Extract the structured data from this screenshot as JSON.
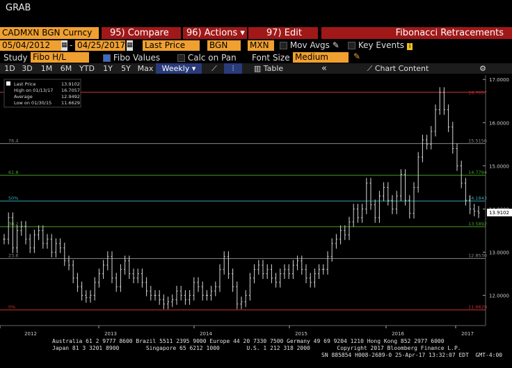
{
  "app_title": "GRAB",
  "toolbar": {
    "security": "CADMXN BGN Curncy",
    "compare": "95) Compare",
    "actions": "96) Actions",
    "edit": "97) Edit",
    "title": "Fibonacci Retracements"
  },
  "settings": {
    "start_date": "05/04/2012",
    "end_date": "04/25/2017",
    "price_type": "Last Price",
    "source": "BGN",
    "currency": "MXN",
    "mov_avgs": "Mov Avgs",
    "key_events": "Key Events",
    "key_events_badge": "i"
  },
  "study_row": {
    "study_label": "Study",
    "study_value": "Fibo H/L",
    "fibo_values": "Fibo Values",
    "calc_on_pan": "Calc on Pan",
    "font_size_label": "Font Size",
    "font_size_value": "Medium"
  },
  "periods": [
    "1D",
    "3D",
    "1M",
    "6M",
    "YTD",
    "1Y",
    "5Y",
    "Max"
  ],
  "frequency": "Weekly",
  "table_label": "Table",
  "chart_content_label": "Chart Content",
  "legend": {
    "last_price_label": "Last Price",
    "last_price_value": "13.9102",
    "high_label": "High on 01/13/17",
    "high_value": "16.7057",
    "average_label": "Average",
    "average_value": "12.9492",
    "low_label": "Low on 01/30/15",
    "low_value": "11.6629"
  },
  "chart_data": {
    "type": "line",
    "x_axis_labels": [
      "2012",
      "2013",
      "2014",
      "2015",
      "2016",
      "2017"
    ],
    "y_ticks": [
      "12.0000",
      "13.0000",
      "14.0000",
      "15.0000",
      "16.0000",
      "17.0000"
    ],
    "ylim": [
      11.3,
      17.1
    ],
    "last_price_label": "13.9102",
    "fib_levels": [
      {
        "label": "100%",
        "pct": "",
        "value": "16.7057",
        "y": 16.7057,
        "color": "#c83030"
      },
      {
        "label": "76.4%",
        "pct": "76.4",
        "value": "15.5156",
        "y": 15.5156,
        "color": "#888888"
      },
      {
        "label": "61.8%",
        "pct": "61.8",
        "value": "14.7794",
        "y": 14.7794,
        "color": "#4aa02a"
      },
      {
        "label": "50%",
        "pct": "50%",
        "value": "14.1843",
        "y": 14.1843,
        "color": "#3aa7b8"
      },
      {
        "label": "38.2%",
        "pct": "38.2",
        "value": "13.5892",
        "y": 13.5892,
        "color": "#4aa02a"
      },
      {
        "label": "23.6%",
        "pct": "23.6",
        "value": "12.8530",
        "y": 12.853,
        "color": "#888888"
      },
      {
        "label": "0%",
        "pct": "0%",
        "value": "11.6629",
        "y": 11.6629,
        "color": "#c83030"
      }
    ],
    "series": [
      {
        "values": [
          13.3,
          13.8,
          13.1,
          13.5,
          13.6,
          13.3,
          13.1,
          13.4,
          13.5,
          13.2,
          13.3,
          13.0,
          13.2,
          13.1,
          12.8,
          12.7,
          12.4,
          12.2,
          12.0,
          11.95,
          12.0,
          12.3,
          12.5,
          12.7,
          12.9,
          12.4,
          12.2,
          12.6,
          12.8,
          12.5,
          12.4,
          12.5,
          12.3,
          12.1,
          12.0,
          12.0,
          11.9,
          11.8,
          11.85,
          11.9,
          12.1,
          12.0,
          11.9,
          12.0,
          12.3,
          12.2,
          12.0,
          12.0,
          12.1,
          12.2,
          12.6,
          12.9,
          12.5,
          12.2,
          11.8,
          11.85,
          12.0,
          12.4,
          12.6,
          12.7,
          12.5,
          12.6,
          12.4,
          12.3,
          12.5,
          12.6,
          12.5,
          12.7,
          12.8,
          12.6,
          12.4,
          12.3,
          12.5,
          12.6,
          12.6,
          12.9,
          13.2,
          13.3,
          13.5,
          13.4,
          13.7,
          14.0,
          13.8,
          14.0,
          14.6,
          14.1,
          13.8,
          14.3,
          14.5,
          14.2,
          14.0,
          14.3,
          14.8,
          14.2,
          13.9,
          14.5,
          15.2,
          15.6,
          15.5,
          15.8,
          16.3,
          16.7,
          16.3,
          15.9,
          15.4,
          15.0,
          14.6,
          14.2,
          14.0,
          13.95,
          13.91
        ]
      }
    ]
  },
  "footer": {
    "line1": "Australia 61 2 9777 8600 Brazil 5511 2395 9000 Europe 44 20 7330 7500 Germany 49 69 9204 1210 Hong Kong 852 2977 6000",
    "line2": "Japan 81 3 3201 8900        Singapore 65 6212 1000        U.S. 1 212 318 2000        Copyright 2017 Bloomberg Finance L.P.",
    "line3": "SN 885854 H008-2689-0 25-Apr-17 13:32:07 EDT  GMT-4:00"
  },
  "colors": {
    "accent": "#f0a030",
    "toolbar_red": "#a01818",
    "price_line": "#d8d8d8"
  }
}
